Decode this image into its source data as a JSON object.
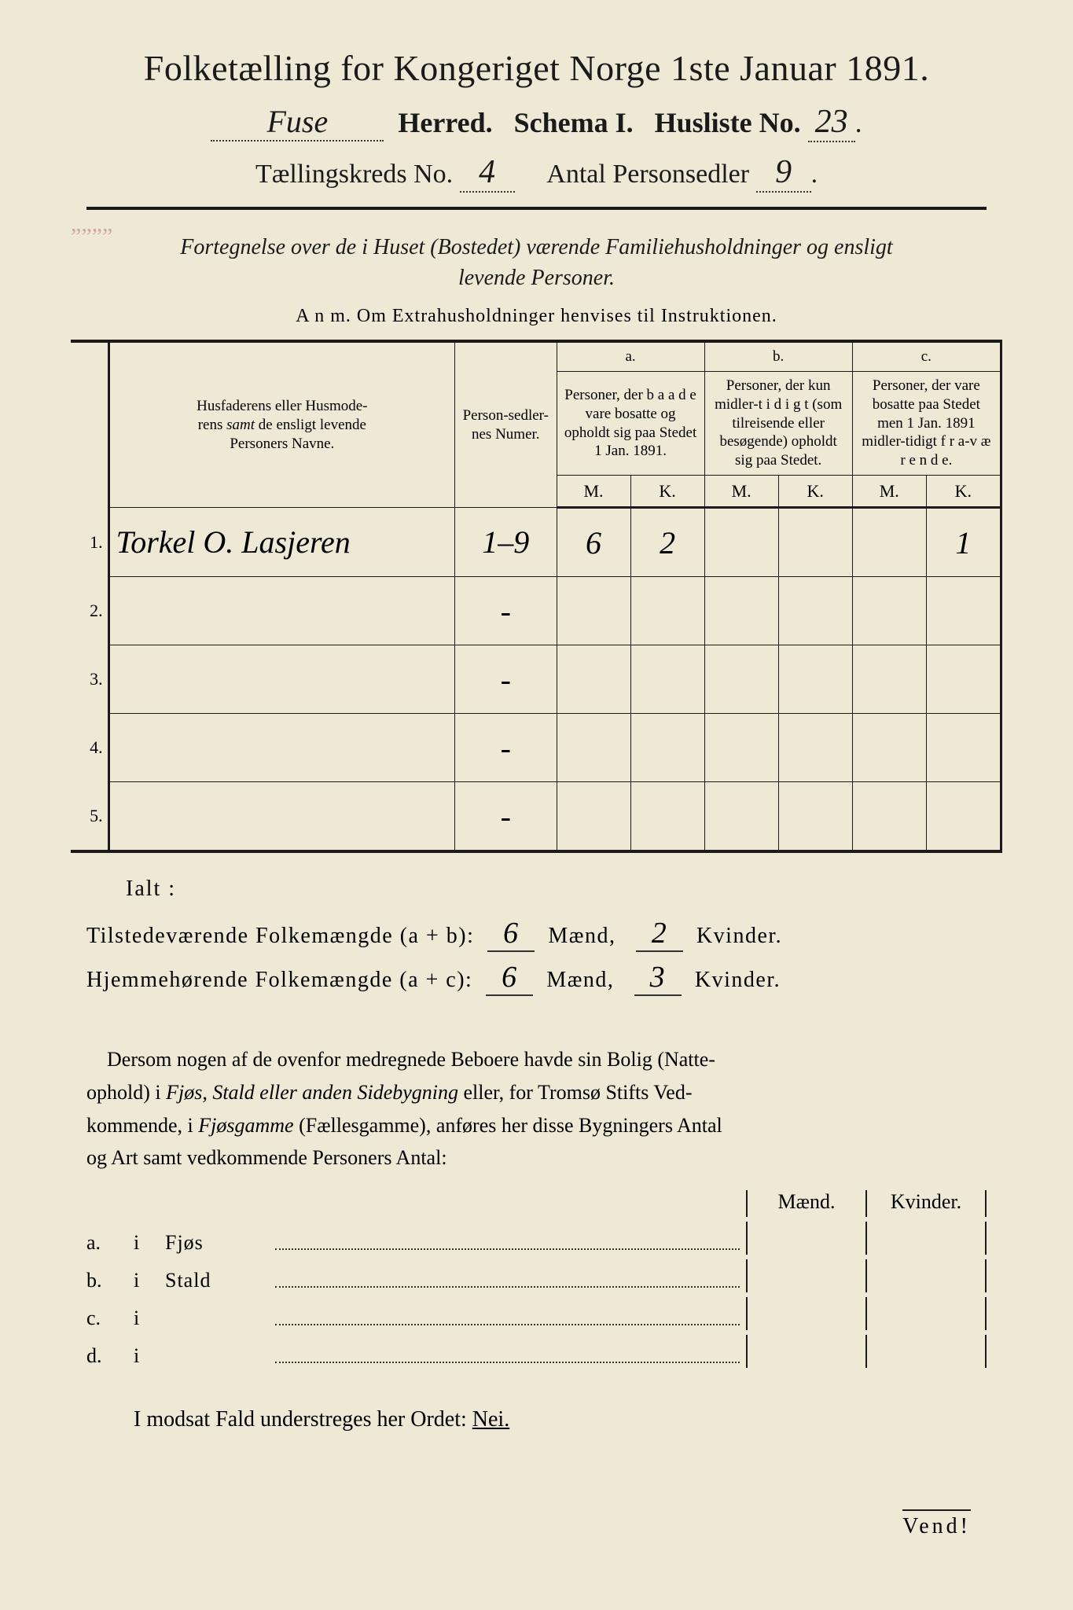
{
  "colors": {
    "paper": "#ede9d5",
    "ink": "#1a1a1a",
    "hand": "#3a2a1a"
  },
  "title": "Folketælling for Kongeriget Norge 1ste Januar 1891.",
  "line2": {
    "herred_hand": "Fuse",
    "herred_label": "Herred.",
    "schema_label": "Schema I.",
    "husliste_label": "Husliste No.",
    "husliste_hand": "23"
  },
  "line3": {
    "kreds_label": "Tællingskreds No.",
    "kreds_hand": "4",
    "antal_label": "Antal Personsedler",
    "antal_hand": "9"
  },
  "subtitle_line1": "Fortegnelse over de i Huset (Bostedet) værende Familiehusholdninger og ensligt",
  "subtitle_line2": "levende Personer.",
  "anm": "A n m.   Om Extrahusholdninger henvises til Instruktionen.",
  "table": {
    "head_name": "Husfaderens eller Husmoderens samt de ensligt levende Personers Navne.",
    "head_num": "Person-sedler-nes Numer.",
    "head_a_top": "a.",
    "head_a": "Personer, der b a a d e vare bosatte og opholdt sig paa Stedet 1 Jan. 1891.",
    "head_b_top": "b.",
    "head_b": "Personer, der kun midler-t i d i g t (som tilreisende eller besøgende) opholdt sig paa Stedet.",
    "head_c_top": "c.",
    "head_c": "Personer, der vare bosatte paa Stedet men 1 Jan. 1891 midler-tidigt f r a-v æ r e n d e.",
    "M": "M.",
    "K": "K.",
    "rows": [
      {
        "n": "1.",
        "name": "Torkel O. Lasjeren",
        "num": "1–9",
        "aM": "6",
        "aK": "2",
        "bM": "",
        "bK": "",
        "cM": "",
        "cK": "1"
      },
      {
        "n": "2.",
        "name": "",
        "num": "-",
        "aM": "",
        "aK": "",
        "bM": "",
        "bK": "",
        "cM": "",
        "cK": ""
      },
      {
        "n": "3.",
        "name": "",
        "num": "-",
        "aM": "",
        "aK": "",
        "bM": "",
        "bK": "",
        "cM": "",
        "cK": ""
      },
      {
        "n": "4.",
        "name": "",
        "num": "-",
        "aM": "",
        "aK": "",
        "bM": "",
        "bK": "",
        "cM": "",
        "cK": ""
      },
      {
        "n": "5.",
        "name": "",
        "num": "-",
        "aM": "",
        "aK": "",
        "bM": "",
        "bK": "",
        "cM": "",
        "cK": ""
      }
    ]
  },
  "ialt": "Ialt :",
  "sum1": {
    "label": "Tilstedeværende Folkemængde (a + b):",
    "m": "6",
    "m_label": "Mænd,",
    "k": "2",
    "k_label": "Kvinder."
  },
  "sum2": {
    "label": "Hjemmehørende Folkemængde (a + c):",
    "m": "6",
    "m_label": "Mænd,",
    "k": "3",
    "k_label": "Kvinder."
  },
  "para": "Dersom nogen af de ovenfor medregnede Beboere havde sin Bolig (Natteophold) i Fjøs, Stald eller anden Sidebygning eller, for Tromsø Stifts Vedkommende, i Fjøsgamme (Fællesgamme), anføres her disse Bygningers Antal og Art samt vedkommende Personers Antal:",
  "bldg_head": {
    "m": "Mænd.",
    "k": "Kvinder."
  },
  "bldg": [
    {
      "a": "a.",
      "i": "i",
      "name": "Fjøs"
    },
    {
      "a": "b.",
      "i": "i",
      "name": "Stald"
    },
    {
      "a": "c.",
      "i": "i",
      "name": ""
    },
    {
      "a": "d.",
      "i": "i",
      "name": ""
    }
  ],
  "nei_pre": "I modsat Fald understreges her Ordet: ",
  "nei": "Nei.",
  "vend": "Vend!"
}
